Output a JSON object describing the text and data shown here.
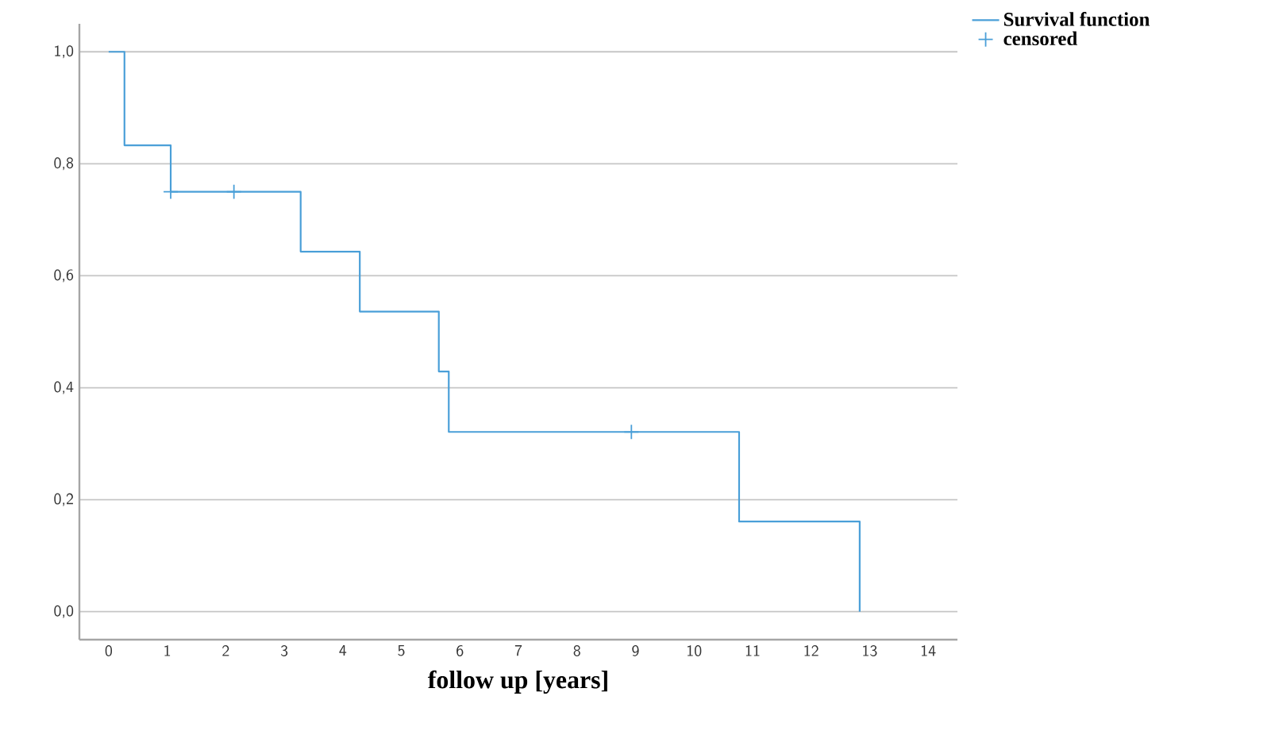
{
  "chart_data": {
    "type": "step",
    "xlabel": "follow up [years]",
    "xlim": [
      -0.5,
      14.5
    ],
    "ylim": [
      -0.05,
      1.05
    ],
    "xticks": [
      0,
      1,
      2,
      3,
      4,
      5,
      6,
      7,
      8,
      9,
      10,
      11,
      12,
      13,
      14
    ],
    "yticks": [
      {
        "value": 0,
        "label": "0,0"
      },
      {
        "value": 0.2,
        "label": "0,2"
      },
      {
        "value": 0.4,
        "label": "0,4"
      },
      {
        "value": 0.6,
        "label": "0,6"
      },
      {
        "value": 0.8,
        "label": "0,8"
      },
      {
        "value": 1.0,
        "label": "1,0"
      }
    ],
    "grid": "y",
    "legend": "top right",
    "series": [
      {
        "name": "Survival function",
        "color": "#4a9fd8",
        "x": [
          0,
          0.27,
          1.06,
          3.28,
          4.29,
          5.64,
          5.81,
          10.77,
          12.83
        ],
        "values": [
          1.0,
          0.833,
          0.75,
          0.643,
          0.536,
          0.429,
          0.321,
          0.161,
          0.0
        ]
      },
      {
        "name": "censored",
        "type": "scatter",
        "marker": "cross",
        "color": "#4a9fd8",
        "x": [
          1.06,
          2.14,
          8.93
        ],
        "values": [
          0.75,
          0.75,
          0.321
        ]
      }
    ]
  }
}
